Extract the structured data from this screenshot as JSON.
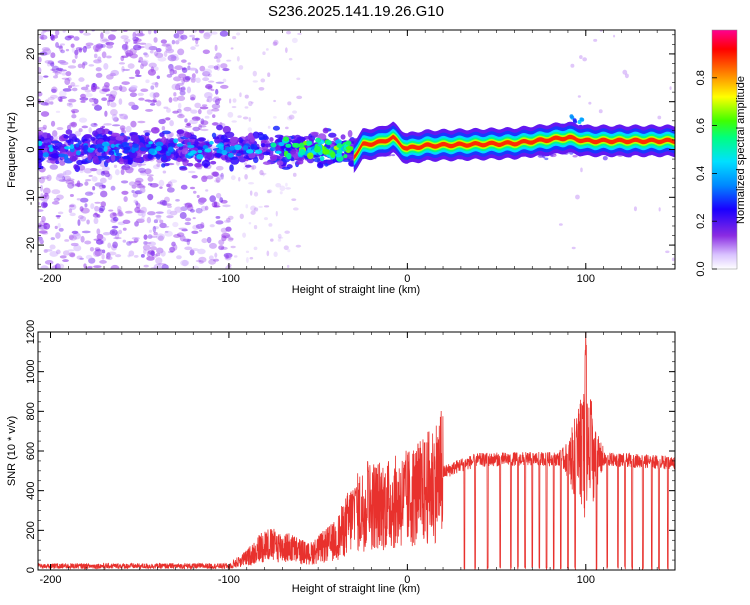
{
  "title": "S236.2025.141.19.26.G10",
  "chart_data": [
    {
      "type": "heatmap",
      "name": "spectrogram",
      "xlabel": "Height of straight line (km)",
      "ylabel": "Frequency (Hz)",
      "xlim": [
        -207,
        150
      ],
      "ylim": [
        -25,
        25
      ],
      "xticks": [
        -200,
        -100,
        0,
        100
      ],
      "yticks": [
        -20,
        -10,
        0,
        10,
        20
      ],
      "colorbar": {
        "label": "Normalized spectral amplitude",
        "range": [
          0,
          1
        ],
        "ticks": [
          "0.0",
          "0.2",
          "0.4",
          "0.6",
          "0.8"
        ],
        "tick_values": [
          0.0,
          0.2,
          0.4,
          0.6,
          0.8
        ],
        "colormap": [
          "#ffffff",
          "#8a2be2",
          "#0000ff",
          "#00c8ff",
          "#00ff00",
          "#ffff00",
          "#ff8000",
          "#ff0000",
          "#ff00aa"
        ]
      },
      "ridge_track": [
        {
          "x": -30,
          "y": -1.5
        },
        {
          "x": -25,
          "y": 1.0
        },
        {
          "x": -15,
          "y": 1.5
        },
        {
          "x": -8,
          "y": 2.5
        },
        {
          "x": -3,
          "y": 0.8
        },
        {
          "x": 0,
          "y": 0.2
        },
        {
          "x": 10,
          "y": 0.8
        },
        {
          "x": 30,
          "y": 1.0
        },
        {
          "x": 60,
          "y": 1.3
        },
        {
          "x": 90,
          "y": 2.5
        },
        {
          "x": 100,
          "y": 1.8
        },
        {
          "x": 150,
          "y": 1.8
        }
      ]
    },
    {
      "type": "line",
      "name": "snr",
      "xlabel": "Height of straight line (km)",
      "ylabel": "SNR (10 * v/v)",
      "xlim": [
        -207,
        150
      ],
      "ylim": [
        0,
        1200
      ],
      "xticks": [
        -200,
        -100,
        0,
        100
      ],
      "yticks": [
        0,
        200,
        400,
        600,
        800,
        1000,
        1200
      ],
      "color": "#e8312d",
      "envelope": [
        {
          "x": -207,
          "y": 20
        },
        {
          "x": -100,
          "y": 20
        },
        {
          "x": -90,
          "y": 60
        },
        {
          "x": -80,
          "y": 130
        },
        {
          "x": -65,
          "y": 110
        },
        {
          "x": -55,
          "y": 80
        },
        {
          "x": -40,
          "y": 150
        },
        {
          "x": -30,
          "y": 280
        },
        {
          "x": -20,
          "y": 330
        },
        {
          "x": -10,
          "y": 330
        },
        {
          "x": 0,
          "y": 360
        },
        {
          "x": 10,
          "y": 400
        },
        {
          "x": 20,
          "y": 490
        },
        {
          "x": 30,
          "y": 530
        },
        {
          "x": 40,
          "y": 555
        },
        {
          "x": 60,
          "y": 560
        },
        {
          "x": 80,
          "y": 560
        },
        {
          "x": 100,
          "y": 560
        },
        {
          "x": 120,
          "y": 555
        },
        {
          "x": 150,
          "y": 540
        }
      ],
      "peaks": [
        {
          "x": -22,
          "y": 580
        },
        {
          "x": -29,
          "y": 420
        },
        {
          "x": 98,
          "y": 880
        },
        {
          "x": 100,
          "y": 1200
        },
        {
          "x": 103,
          "y": 860
        },
        {
          "x": 95,
          "y": 780
        }
      ],
      "dropouts_x": [
        32,
        38,
        45,
        52,
        58,
        62,
        66,
        70,
        74,
        78,
        82,
        86,
        90,
        94,
        106,
        112,
        118,
        122,
        126,
        132,
        137,
        141,
        146
      ]
    }
  ]
}
